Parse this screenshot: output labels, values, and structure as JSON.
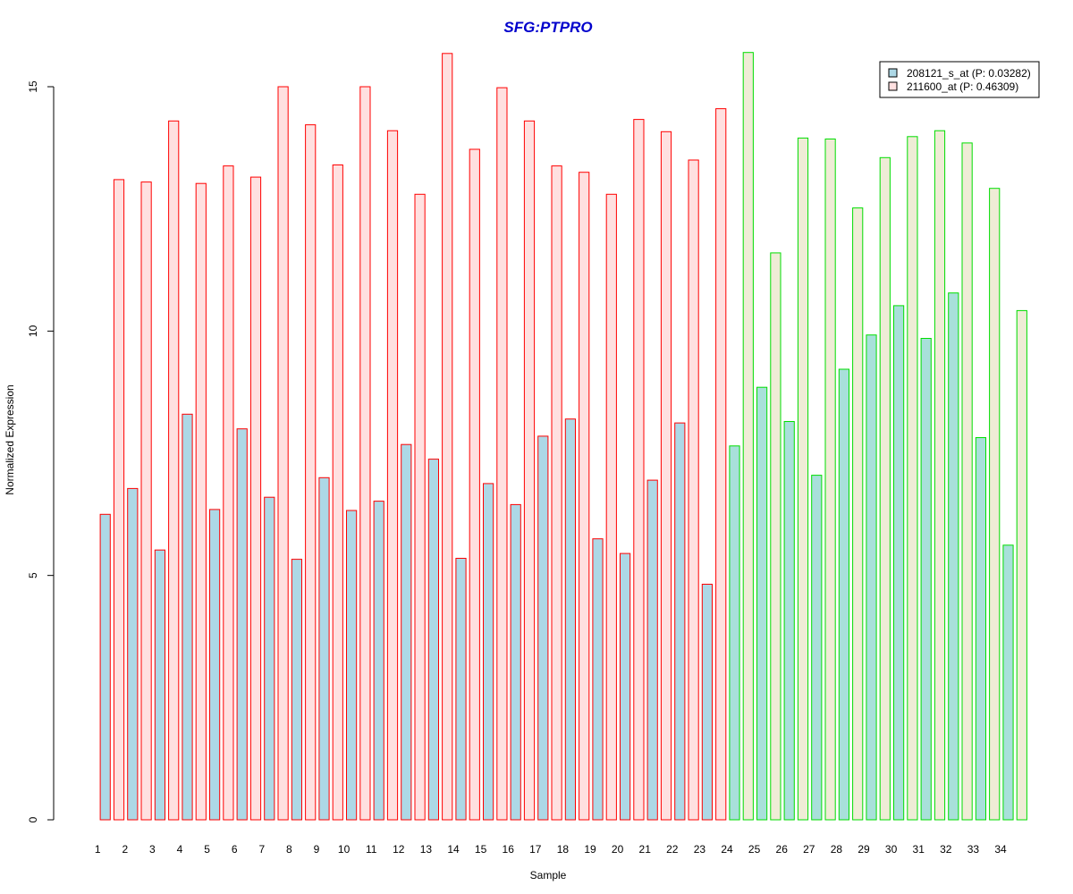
{
  "chart_data": {
    "type": "bar",
    "title": "SFG:PTPRO",
    "xlabel": "Sample",
    "ylabel": "Normalized Expression",
    "ylim": [
      0,
      15
    ],
    "yticks": [
      0,
      5,
      10,
      15
    ],
    "grid": false,
    "legend_position": "top-right",
    "categories": [
      "1",
      "2",
      "3",
      "4",
      "5",
      "6",
      "7",
      "8",
      "9",
      "10",
      "11",
      "12",
      "13",
      "14",
      "15",
      "16",
      "17",
      "18",
      "19",
      "20",
      "21",
      "22",
      "23",
      "24",
      "25",
      "26",
      "27",
      "28",
      "29",
      "30",
      "31",
      "32",
      "33",
      "34"
    ],
    "series": [
      {
        "name": "208121_s_at (P: 0.03282)",
        "values": [
          6.25,
          6.78,
          5.52,
          8.3,
          6.35,
          8.0,
          6.6,
          5.33,
          7.0,
          6.33,
          6.52,
          7.68,
          7.38,
          5.35,
          6.88,
          6.45,
          7.85,
          8.2,
          5.75,
          5.45,
          6.95,
          8.12,
          4.82,
          7.65,
          8.85,
          8.15,
          7.05,
          9.22,
          9.92,
          10.52,
          9.85,
          10.78,
          7.82,
          5.62
        ]
      },
      {
        "name": "211600_at (P: 0.46309)",
        "values": [
          13.1,
          13.05,
          14.3,
          13.02,
          13.38,
          13.15,
          15.0,
          14.22,
          13.4,
          15.0,
          14.1,
          12.8,
          15.68,
          13.72,
          14.98,
          14.3,
          13.38,
          13.25,
          12.8,
          14.33,
          14.08,
          13.5,
          14.55,
          15.7,
          11.6,
          13.95,
          13.93,
          12.52,
          13.55,
          13.98,
          14.1,
          13.85,
          12.92,
          10.42
        ]
      }
    ],
    "group_b_start_index": 23,
    "colors": {
      "group_a_border": "#ff0000",
      "group_b_border": "#00dd00",
      "group_a_series1_fill": "#add8e6",
      "group_a_series2_fill": "#ffe0e0",
      "group_b_series1_fill": "#a8e0da",
      "group_b_series2_fill": "#efecd6",
      "legend_series1_fill": "#add8e6",
      "legend_series2_fill": "#ffe0e0",
      "title": "#0000cc",
      "axis": "#000000"
    }
  }
}
